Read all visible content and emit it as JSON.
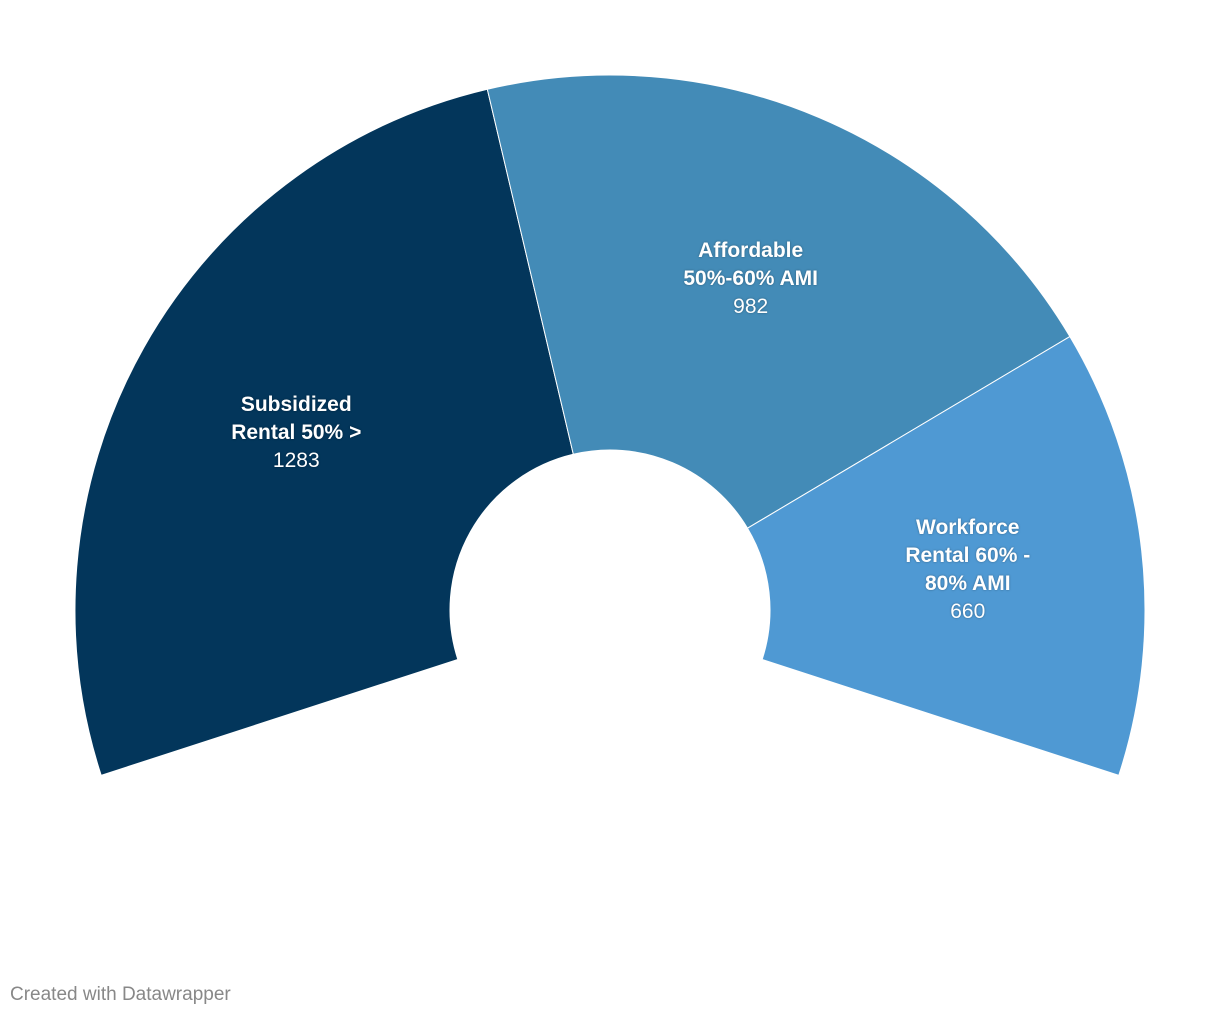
{
  "chart_data": {
    "type": "pie",
    "variant": "semi-donut",
    "total_angle_degrees": 216,
    "slices": [
      {
        "label_lines": [
          "Subsidized",
          "Rental 50% >"
        ],
        "value": 1283,
        "color": "#03365b"
      },
      {
        "label_lines": [
          "Affordable",
          "50%-60% AMI"
        ],
        "value": 982,
        "color": "#438bb7"
      },
      {
        "label_lines": [
          "Workforce",
          "Rental 60% -",
          "80% AMI"
        ],
        "value": 660,
        "color": "#4f99d3"
      }
    ]
  },
  "footer": {
    "credit": "Created with Datawrapper"
  }
}
